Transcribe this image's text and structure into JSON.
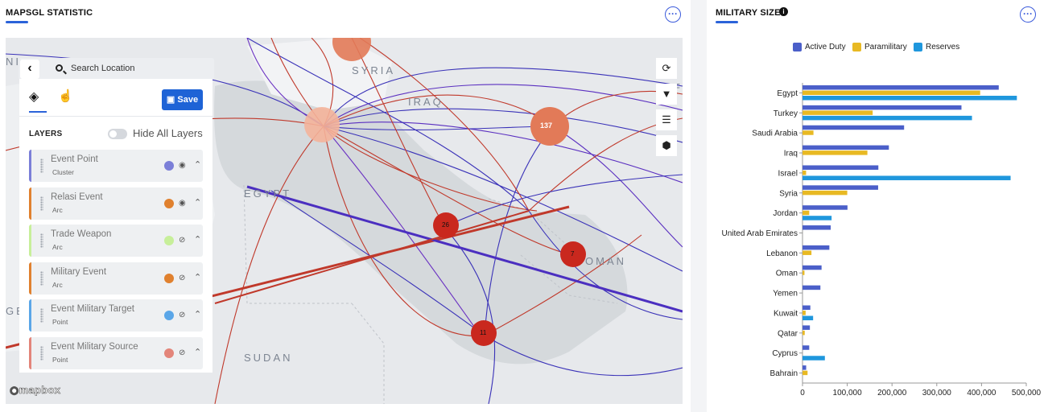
{
  "left_panel": {
    "title": "MAPSGL STATISTIC",
    "menu_label": "···",
    "search": {
      "placeholder": "Search Location"
    },
    "save_label": "Save",
    "layers_heading": "LAYERS",
    "hide_all_label": "Hide All Layers",
    "layers": [
      {
        "name": "Event Point",
        "type": "Cluster",
        "color": "#7b7fd8",
        "visible": true
      },
      {
        "name": "Relasi Event",
        "type": "Arc",
        "color": "#e0812f",
        "visible": true
      },
      {
        "name": "Trade Weapon",
        "type": "Arc",
        "color": "#c7ef9a",
        "visible": false
      },
      {
        "name": "Military Event",
        "type": "Arc",
        "color": "#e0812f",
        "visible": false
      },
      {
        "name": "Event Military Target",
        "type": "Point",
        "color": "#5aa6e8",
        "visible": false
      },
      {
        "name": "Event Military Source",
        "type": "Point",
        "color": "#e3857a",
        "visible": false
      }
    ],
    "map_labels": [
      "SYRIA",
      "IRAQ",
      "EGYPT",
      "OMAN",
      "SUDAN",
      "NISIA",
      "GE",
      "FG"
    ],
    "clusters": [
      "137",
      "26",
      "7",
      "11"
    ],
    "attribution": "mapbox"
  },
  "right_panel": {
    "title": "MILITARY SIZE",
    "info_icon": "i",
    "menu_label": "···"
  },
  "chart_data": {
    "type": "bar",
    "orientation": "horizontal",
    "categories": [
      "Egypt",
      "Turkey",
      "Saudi Arabia",
      "Iraq",
      "Israel",
      "Syria",
      "Jordan",
      "United Arab Emirates",
      "Lebanon",
      "Oman",
      "Yemen",
      "Kuwait",
      "Qatar",
      "Cyprus",
      "Bahrain"
    ],
    "series": [
      {
        "name": "Active Duty",
        "color": "#4b5fc9",
        "values": [
          438500,
          355200,
          227000,
          193000,
          169500,
          169000,
          100500,
          63000,
          60000,
          42600,
          40000,
          17500,
          16500,
          15000,
          8200
        ]
      },
      {
        "name": "Paramilitary",
        "color": "#e8b923",
        "values": [
          397000,
          156800,
          24500,
          145000,
          8000,
          100000,
          15000,
          0,
          20000,
          4400,
          0,
          7000,
          5000,
          0,
          11300
        ]
      },
      {
        "name": "Reserves",
        "color": "#1f97dd",
        "values": [
          479000,
          378700,
          0,
          0,
          465000,
          0,
          65000,
          0,
          0,
          0,
          0,
          23700,
          0,
          50000,
          0
        ]
      }
    ],
    "xlim": [
      0,
      500000
    ],
    "xticks": [
      "0",
      "100,000",
      "200,000",
      "300,000",
      "400,000",
      "500,000"
    ],
    "legend_position": "top"
  }
}
